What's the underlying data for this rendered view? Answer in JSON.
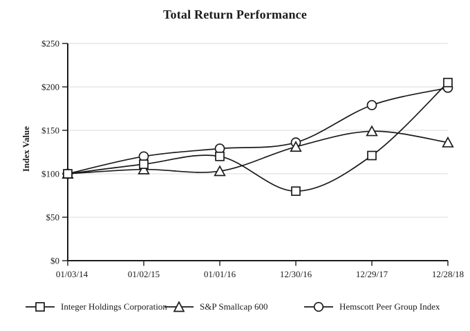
{
  "chart_data": {
    "type": "line",
    "title": "Total Return Performance",
    "ylabel": "Index Value",
    "xlabel": "",
    "ylim": [
      0,
      250
    ],
    "grid": true,
    "legend_position": "bottom",
    "categories": [
      "01/03/14",
      "01/02/15",
      "01/01/16",
      "12/30/16",
      "12/29/17",
      "12/28/18"
    ],
    "yticks": {
      "values": [
        0,
        50,
        100,
        150,
        200,
        250
      ],
      "labels": [
        "$0",
        "$50",
        "$100",
        "$150",
        "$200",
        "$250"
      ]
    },
    "series": [
      {
        "name": "Integer Holdings Corporation",
        "marker": "square",
        "values": [
          100,
          111,
          120,
          80,
          121,
          205
        ]
      },
      {
        "name": "S&P Smallcap 600",
        "marker": "triangle",
        "values": [
          100,
          105,
          103,
          131,
          149,
          136
        ]
      },
      {
        "name": "Hemscott Peer Group Index",
        "marker": "circle",
        "values": [
          100,
          120,
          129,
          136,
          179,
          199
        ]
      }
    ],
    "colors": {
      "line": "#1a1a1a",
      "marker_fill": "#ffffff",
      "grid": "#dadada",
      "background": "#ffffff"
    }
  }
}
